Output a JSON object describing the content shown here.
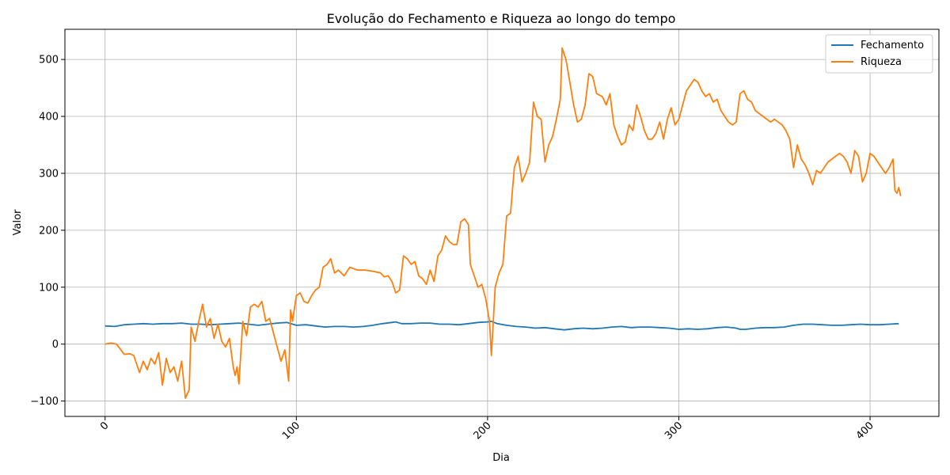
{
  "chart_data": {
    "type": "line",
    "title": "Evolução do Fechamento e Riqueza ao longo do tempo",
    "xlabel": "Dia",
    "ylabel": "Valor",
    "xlim": [
      -21,
      436
    ],
    "ylim": [
      -127,
      553
    ],
    "x_ticks": [
      0,
      100,
      200,
      300,
      400
    ],
    "y_ticks": [
      -100,
      0,
      100,
      200,
      300,
      400,
      500
    ],
    "x_tick_labels": [
      "0",
      "100",
      "200",
      "300",
      "400"
    ],
    "y_tick_labels": [
      "−100",
      "0",
      "100",
      "200",
      "300",
      "400",
      "500"
    ],
    "grid": true,
    "legend_position": "top-right",
    "series": [
      {
        "name": "Fechamento",
        "color": "#1f77b4",
        "points": [
          [
            0,
            32
          ],
          [
            5,
            31
          ],
          [
            10,
            34
          ],
          [
            15,
            35
          ],
          [
            20,
            36
          ],
          [
            25,
            35
          ],
          [
            30,
            36
          ],
          [
            35,
            36
          ],
          [
            40,
            37
          ],
          [
            45,
            35
          ],
          [
            50,
            35
          ],
          [
            55,
            34
          ],
          [
            60,
            35
          ],
          [
            65,
            36
          ],
          [
            70,
            37
          ],
          [
            75,
            35
          ],
          [
            80,
            33
          ],
          [
            85,
            35
          ],
          [
            90,
            37
          ],
          [
            95,
            38
          ],
          [
            100,
            33
          ],
          [
            105,
            34
          ],
          [
            110,
            32
          ],
          [
            115,
            30
          ],
          [
            120,
            31
          ],
          [
            125,
            31
          ],
          [
            130,
            30
          ],
          [
            135,
            31
          ],
          [
            140,
            33
          ],
          [
            145,
            36
          ],
          [
            150,
            38
          ],
          [
            152,
            39
          ],
          [
            155,
            36
          ],
          [
            160,
            36
          ],
          [
            165,
            37
          ],
          [
            170,
            37
          ],
          [
            175,
            35
          ],
          [
            180,
            35
          ],
          [
            185,
            34
          ],
          [
            190,
            36
          ],
          [
            195,
            38
          ],
          [
            200,
            39
          ],
          [
            202,
            40
          ],
          [
            205,
            36
          ],
          [
            210,
            33
          ],
          [
            215,
            31
          ],
          [
            220,
            30
          ],
          [
            225,
            28
          ],
          [
            230,
            29
          ],
          [
            235,
            27
          ],
          [
            240,
            25
          ],
          [
            245,
            27
          ],
          [
            250,
            28
          ],
          [
            255,
            27
          ],
          [
            260,
            28
          ],
          [
            265,
            30
          ],
          [
            270,
            31
          ],
          [
            275,
            29
          ],
          [
            280,
            30
          ],
          [
            285,
            30
          ],
          [
            290,
            29
          ],
          [
            295,
            28
          ],
          [
            300,
            26
          ],
          [
            305,
            27
          ],
          [
            310,
            26
          ],
          [
            315,
            27
          ],
          [
            320,
            29
          ],
          [
            325,
            30
          ],
          [
            330,
            28
          ],
          [
            332,
            26
          ],
          [
            335,
            26
          ],
          [
            340,
            28
          ],
          [
            345,
            29
          ],
          [
            350,
            29
          ],
          [
            355,
            30
          ],
          [
            360,
            33
          ],
          [
            365,
            35
          ],
          [
            370,
            35
          ],
          [
            375,
            34
          ],
          [
            380,
            33
          ],
          [
            385,
            33
          ],
          [
            390,
            34
          ],
          [
            395,
            35
          ],
          [
            400,
            34
          ],
          [
            405,
            34
          ],
          [
            410,
            35
          ],
          [
            415,
            36
          ]
        ]
      },
      {
        "name": "Riqueza",
        "color": "#ff7f0e",
        "points": [
          [
            0,
            0
          ],
          [
            3,
            2
          ],
          [
            6,
            0
          ],
          [
            10,
            -18
          ],
          [
            13,
            -17
          ],
          [
            15,
            -20
          ],
          [
            18,
            -50
          ],
          [
            20,
            -30
          ],
          [
            22,
            -45
          ],
          [
            24,
            -25
          ],
          [
            26,
            -35
          ],
          [
            28,
            -15
          ],
          [
            30,
            -72
          ],
          [
            32,
            -25
          ],
          [
            34,
            -50
          ],
          [
            36,
            -40
          ],
          [
            38,
            -65
          ],
          [
            40,
            -30
          ],
          [
            42,
            -95
          ],
          [
            44,
            -80
          ],
          [
            45,
            30
          ],
          [
            47,
            5
          ],
          [
            49,
            40
          ],
          [
            51,
            70
          ],
          [
            53,
            30
          ],
          [
            55,
            45
          ],
          [
            57,
            10
          ],
          [
            59,
            35
          ],
          [
            61,
            5
          ],
          [
            63,
            -5
          ],
          [
            65,
            10
          ],
          [
            67,
            -40
          ],
          [
            68,
            -55
          ],
          [
            69,
            -40
          ],
          [
            70,
            -70
          ],
          [
            72,
            40
          ],
          [
            74,
            15
          ],
          [
            76,
            65
          ],
          [
            78,
            70
          ],
          [
            80,
            65
          ],
          [
            82,
            75
          ],
          [
            84,
            40
          ],
          [
            86,
            45
          ],
          [
            88,
            20
          ],
          [
            90,
            -5
          ],
          [
            92,
            -30
          ],
          [
            94,
            -10
          ],
          [
            96,
            -65
          ],
          [
            97,
            60
          ],
          [
            98,
            40
          ],
          [
            100,
            85
          ],
          [
            102,
            90
          ],
          [
            104,
            75
          ],
          [
            106,
            72
          ],
          [
            108,
            85
          ],
          [
            110,
            95
          ],
          [
            112,
            100
          ],
          [
            114,
            135
          ],
          [
            116,
            140
          ],
          [
            118,
            150
          ],
          [
            120,
            125
          ],
          [
            122,
            130
          ],
          [
            125,
            120
          ],
          [
            128,
            135
          ],
          [
            132,
            130
          ],
          [
            136,
            130
          ],
          [
            140,
            128
          ],
          [
            144,
            125
          ],
          [
            146,
            118
          ],
          [
            148,
            120
          ],
          [
            150,
            110
          ],
          [
            152,
            90
          ],
          [
            154,
            95
          ],
          [
            156,
            155
          ],
          [
            158,
            150
          ],
          [
            160,
            140
          ],
          [
            162,
            145
          ],
          [
            164,
            120
          ],
          [
            166,
            115
          ],
          [
            168,
            105
          ],
          [
            170,
            130
          ],
          [
            172,
            110
          ],
          [
            174,
            155
          ],
          [
            176,
            165
          ],
          [
            178,
            190
          ],
          [
            180,
            180
          ],
          [
            182,
            175
          ],
          [
            184,
            175
          ],
          [
            186,
            215
          ],
          [
            188,
            220
          ],
          [
            190,
            210
          ],
          [
            191,
            140
          ],
          [
            193,
            120
          ],
          [
            195,
            100
          ],
          [
            197,
            105
          ],
          [
            199,
            80
          ],
          [
            201,
            40
          ],
          [
            202,
            -20
          ],
          [
            204,
            100
          ],
          [
            206,
            125
          ],
          [
            208,
            140
          ],
          [
            210,
            225
          ],
          [
            212,
            230
          ],
          [
            214,
            310
          ],
          [
            216,
            330
          ],
          [
            218,
            285
          ],
          [
            220,
            300
          ],
          [
            222,
            320
          ],
          [
            224,
            425
          ],
          [
            226,
            400
          ],
          [
            228,
            395
          ],
          [
            230,
            320
          ],
          [
            232,
            350
          ],
          [
            234,
            365
          ],
          [
            236,
            395
          ],
          [
            238,
            430
          ],
          [
            239,
            520
          ],
          [
            241,
            500
          ],
          [
            243,
            460
          ],
          [
            245,
            420
          ],
          [
            247,
            390
          ],
          [
            249,
            395
          ],
          [
            251,
            420
          ],
          [
            253,
            475
          ],
          [
            255,
            470
          ],
          [
            257,
            440
          ],
          [
            260,
            435
          ],
          [
            262,
            420
          ],
          [
            264,
            440
          ],
          [
            266,
            385
          ],
          [
            268,
            365
          ],
          [
            270,
            350
          ],
          [
            272,
            355
          ],
          [
            274,
            385
          ],
          [
            276,
            375
          ],
          [
            278,
            420
          ],
          [
            280,
            400
          ],
          [
            282,
            375
          ],
          [
            284,
            360
          ],
          [
            286,
            360
          ],
          [
            288,
            370
          ],
          [
            290,
            390
          ],
          [
            292,
            360
          ],
          [
            294,
            395
          ],
          [
            296,
            415
          ],
          [
            298,
            385
          ],
          [
            300,
            395
          ],
          [
            302,
            420
          ],
          [
            304,
            445
          ],
          [
            306,
            455
          ],
          [
            308,
            465
          ],
          [
            310,
            460
          ],
          [
            312,
            445
          ],
          [
            314,
            435
          ],
          [
            316,
            440
          ],
          [
            318,
            425
          ],
          [
            320,
            430
          ],
          [
            322,
            410
          ],
          [
            324,
            400
          ],
          [
            326,
            390
          ],
          [
            328,
            385
          ],
          [
            330,
            390
          ],
          [
            332,
            440
          ],
          [
            334,
            445
          ],
          [
            336,
            430
          ],
          [
            338,
            425
          ],
          [
            340,
            410
          ],
          [
            342,
            405
          ],
          [
            344,
            400
          ],
          [
            346,
            395
          ],
          [
            348,
            390
          ],
          [
            350,
            395
          ],
          [
            352,
            390
          ],
          [
            354,
            385
          ],
          [
            356,
            375
          ],
          [
            358,
            360
          ],
          [
            360,
            310
          ],
          [
            362,
            350
          ],
          [
            364,
            325
          ],
          [
            366,
            315
          ],
          [
            368,
            300
          ],
          [
            370,
            280
          ],
          [
            372,
            305
          ],
          [
            374,
            300
          ],
          [
            376,
            310
          ],
          [
            378,
            320
          ],
          [
            380,
            325
          ],
          [
            382,
            330
          ],
          [
            384,
            335
          ],
          [
            386,
            330
          ],
          [
            388,
            320
          ],
          [
            390,
            300
          ],
          [
            392,
            340
          ],
          [
            394,
            330
          ],
          [
            396,
            285
          ],
          [
            398,
            300
          ],
          [
            400,
            335
          ],
          [
            402,
            330
          ],
          [
            404,
            320
          ],
          [
            406,
            310
          ],
          [
            408,
            300
          ],
          [
            410,
            310
          ],
          [
            412,
            325
          ],
          [
            413,
            270
          ],
          [
            414,
            265
          ],
          [
            415,
            275
          ],
          [
            416,
            260
          ]
        ]
      }
    ]
  }
}
